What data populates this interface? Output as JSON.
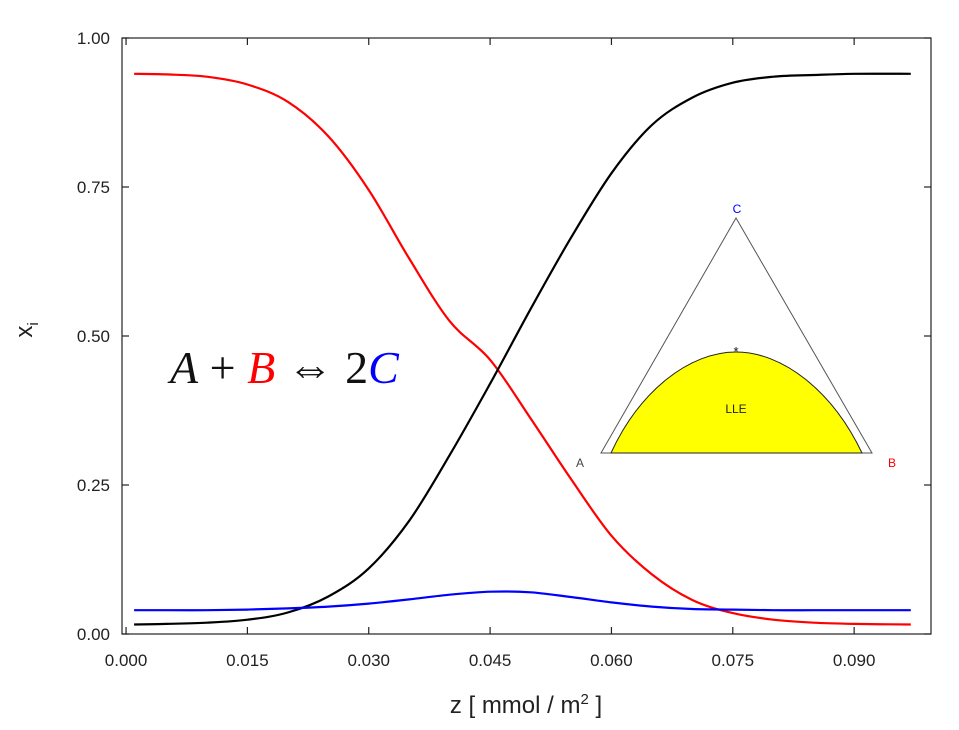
{
  "chart_data": {
    "type": "line",
    "xlabel": "z [ mmol / m",
    "xlabel_sup": "2",
    "xlabel_end": " ]",
    "ylabel": "x",
    "ylabel_sub": "i",
    "xlim": [
      -0.0005,
      0.0995
    ],
    "ylim": [
      0,
      1.0
    ],
    "x_ticks": [
      0.0,
      0.015,
      0.03,
      0.045,
      0.06,
      0.075,
      0.09
    ],
    "x_tick_labels": [
      "0.000",
      "0.015",
      "0.030",
      "0.045",
      "0.060",
      "0.075",
      "0.090"
    ],
    "y_ticks": [
      0.0,
      0.25,
      0.5,
      0.75,
      1.0
    ],
    "y_tick_labels": [
      "0.00",
      "0.25",
      "0.50",
      "0.75",
      "1.00"
    ],
    "grid": false,
    "series": [
      {
        "color": "#ff0000",
        "x": [
          0.001,
          0.005,
          0.01,
          0.015,
          0.02,
          0.025,
          0.03,
          0.035,
          0.04,
          0.045,
          0.05,
          0.055,
          0.06,
          0.065,
          0.07,
          0.075,
          0.08,
          0.085,
          0.09,
          0.097
        ],
        "y": [
          0.94,
          0.939,
          0.935,
          0.922,
          0.893,
          0.835,
          0.745,
          0.63,
          0.525,
          0.46,
          0.362,
          0.26,
          0.165,
          0.1,
          0.057,
          0.035,
          0.024,
          0.019,
          0.017,
          0.016
        ]
      },
      {
        "color": "#000000",
        "x": [
          0.001,
          0.005,
          0.01,
          0.015,
          0.02,
          0.025,
          0.03,
          0.035,
          0.04,
          0.045,
          0.05,
          0.055,
          0.06,
          0.065,
          0.07,
          0.075,
          0.08,
          0.085,
          0.09,
          0.097
        ],
        "y": [
          0.016,
          0.017,
          0.019,
          0.024,
          0.036,
          0.063,
          0.11,
          0.19,
          0.3,
          0.42,
          0.545,
          0.665,
          0.773,
          0.854,
          0.9,
          0.925,
          0.935,
          0.938,
          0.94,
          0.94
        ]
      },
      {
        "color": "#0000ff",
        "x": [
          0.001,
          0.005,
          0.01,
          0.015,
          0.02,
          0.025,
          0.03,
          0.035,
          0.04,
          0.045,
          0.05,
          0.055,
          0.06,
          0.065,
          0.07,
          0.075,
          0.08,
          0.085,
          0.09,
          0.097
        ],
        "y": [
          0.04,
          0.04,
          0.04,
          0.041,
          0.043,
          0.046,
          0.051,
          0.058,
          0.066,
          0.071,
          0.07,
          0.062,
          0.053,
          0.046,
          0.042,
          0.041,
          0.04,
          0.04,
          0.04,
          0.04
        ]
      }
    ],
    "annotation": {
      "equation": {
        "A": "A",
        "plus": " + ",
        "B": "B",
        "arrow": "⇔",
        "two": "2",
        "C": "C"
      },
      "colors": {
        "A": "#111111",
        "B": "#ff0000",
        "C": "#0000ff"
      }
    },
    "inset": {
      "vertex_labels": {
        "A": "A",
        "B": "B",
        "C": "C"
      },
      "vertex_colors": {
        "A": "#444444",
        "B": "#ff0000",
        "C": "#0000ff"
      },
      "region_label": "LLE",
      "region_color": "#ffff00"
    }
  }
}
